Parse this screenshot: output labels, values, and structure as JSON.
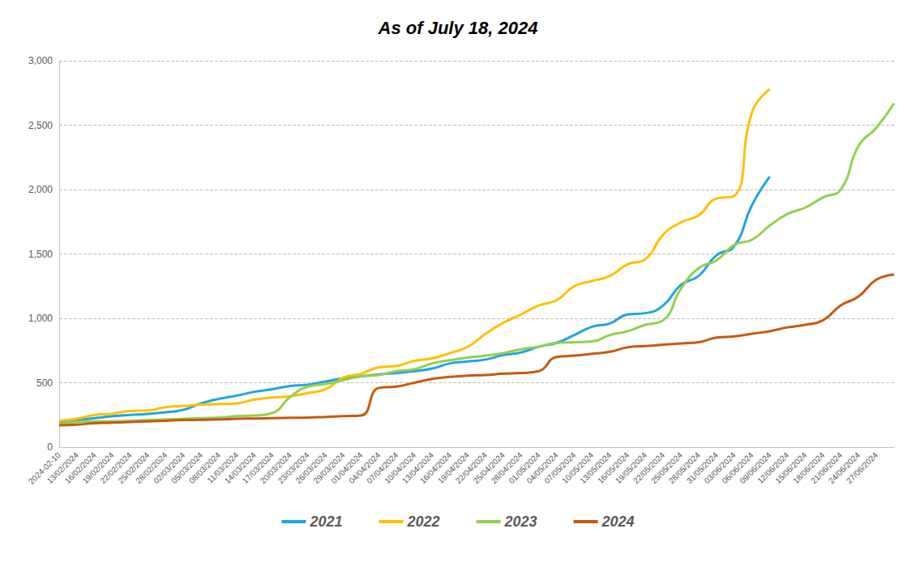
{
  "chart_data": {
    "type": "line",
    "title": "As of July 18, 2024",
    "categories": [
      "2024-02-10",
      "13/02/2024",
      "16/02/2024",
      "19/02/2024",
      "22/02/2024",
      "25/02/2024",
      "28/02/2024",
      "02/03/2024",
      "05/03/2024",
      "08/03/2024",
      "11/03/2024",
      "14/03/2024",
      "17/03/2024",
      "20/03/2024",
      "23/03/2024",
      "26/03/2024",
      "29/03/2024",
      "01/04/2024",
      "04/04/2024",
      "07/04/2024",
      "10/04/2024",
      "13/04/2024",
      "16/04/2024",
      "19/04/2024",
      "22/04/2024",
      "25/04/2024",
      "28/04/2024",
      "01/05/2024",
      "04/05/2024",
      "07/05/2024",
      "10/05/2024",
      "13/05/2024",
      "16/05/2024",
      "19/05/2024",
      "22/05/2024",
      "25/05/2024",
      "28/05/2024",
      "31/05/2024",
      "03/06/2024",
      "06/06/2024",
      "09/06/2024",
      "12/06/2024",
      "15/06/2024",
      "18/06/2024",
      "21/06/2024",
      "24/06/2024",
      "27/06/2024",
      null
    ],
    "series": [
      {
        "name": "2021",
        "color": "#1fa5e0",
        "values": [
          190,
          210,
          225,
          240,
          250,
          258,
          270,
          290,
          340,
          375,
          400,
          430,
          450,
          475,
          485,
          510,
          535,
          550,
          565,
          575,
          590,
          610,
          650,
          665,
          680,
          715,
          735,
          780,
          810,
          870,
          935,
          960,
          1030,
          1040,
          1100,
          1260,
          1330,
          1490,
          1560,
          1880,
          2100,
          null,
          null,
          null,
          null,
          null,
          null,
          null
        ]
      },
      {
        "name": "2022",
        "color": "#ffc000",
        "values": [
          205,
          220,
          250,
          260,
          280,
          285,
          310,
          320,
          330,
          335,
          340,
          370,
          385,
          395,
          420,
          450,
          540,
          570,
          620,
          630,
          670,
          690,
          730,
          780,
          880,
          965,
          1030,
          1100,
          1140,
          1250,
          1290,
          1330,
          1420,
          1460,
          1650,
          1745,
          1800,
          1930,
          1950,
          2600,
          2780,
          null,
          null,
          null,
          null,
          null,
          null,
          null
        ]
      },
      {
        "name": "2023",
        "color": "#92d050",
        "values": [
          180,
          195,
          200,
          200,
          205,
          210,
          215,
          220,
          225,
          230,
          240,
          245,
          265,
          390,
          470,
          490,
          520,
          550,
          560,
          590,
          605,
          650,
          675,
          695,
          710,
          730,
          760,
          780,
          810,
          815,
          820,
          870,
          900,
          950,
          985,
          1230,
          1390,
          1450,
          1570,
          1610,
          1720,
          1810,
          1860,
          1940,
          2000,
          2340,
          2480,
          2670
        ]
      },
      {
        "name": "2024",
        "color": "#c55a11",
        "values": [
          170,
          175,
          185,
          190,
          195,
          200,
          205,
          210,
          212,
          215,
          220,
          222,
          225,
          228,
          230,
          235,
          240,
          245,
          460,
          470,
          500,
          530,
          545,
          555,
          560,
          570,
          575,
          590,
          700,
          710,
          725,
          740,
          775,
          785,
          795,
          805,
          815,
          850,
          860,
          880,
          900,
          930,
          950,
          985,
          1100,
          1170,
          1300,
          1340
        ]
      }
    ],
    "ylim": [
      0,
      3000
    ],
    "yticks": [
      0,
      500,
      1000,
      1500,
      2000,
      2500,
      3000
    ],
    "grid": true,
    "legend": "bottom"
  }
}
